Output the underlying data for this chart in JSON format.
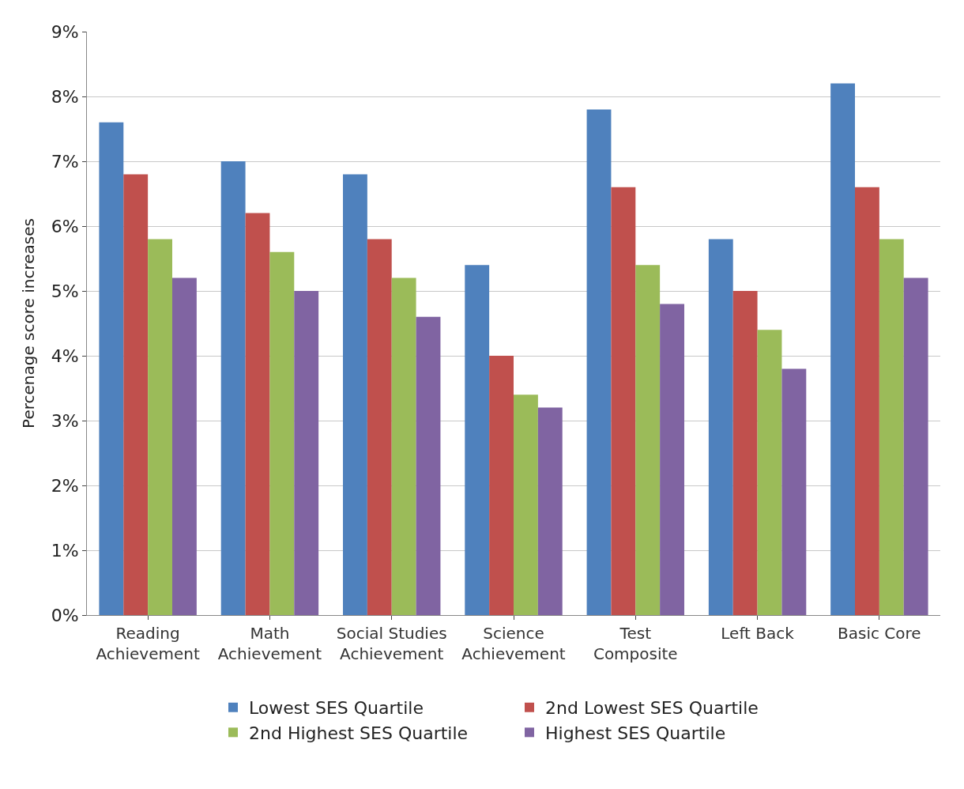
{
  "chart_data": {
    "type": "bar",
    "ylabel": "Percenage score increases",
    "categories": [
      "Reading\nAchievement",
      "Math\nAchievement",
      "Social Studies\nAchievement",
      "Science\nAchievement",
      "Test\nComposite",
      "Left Back",
      "Basic Core"
    ],
    "series": [
      {
        "name": "Lowest SES Quartile",
        "color": "#4f81bd",
        "values": [
          7.6,
          7.0,
          6.8,
          5.4,
          7.8,
          5.8,
          8.2
        ]
      },
      {
        "name": "2nd Lowest SES Quartile",
        "color": "#c0504d",
        "values": [
          6.8,
          6.2,
          5.8,
          4.0,
          6.6,
          5.0,
          6.6
        ]
      },
      {
        "name": "2nd Highest SES Quartile",
        "color": "#9bbb59",
        "values": [
          5.8,
          5.6,
          5.2,
          3.4,
          5.4,
          4.4,
          5.8
        ]
      },
      {
        "name": "Highest SES Quartile",
        "color": "#8064a2",
        "values": [
          5.2,
          5.0,
          4.6,
          3.2,
          4.8,
          3.8,
          5.2
        ]
      }
    ],
    "ylim": [
      0,
      9
    ],
    "yticks": [
      {
        "value": 0,
        "label": "0%"
      },
      {
        "value": 1,
        "label": "1%"
      },
      {
        "value": 2,
        "label": "2%"
      },
      {
        "value": 3,
        "label": "3%"
      },
      {
        "value": 4,
        "label": "4%"
      },
      {
        "value": 5,
        "label": "5%"
      },
      {
        "value": 6,
        "label": "6%"
      },
      {
        "value": 7,
        "label": "7%"
      },
      {
        "value": 8,
        "label": "8%"
      },
      {
        "value": 9,
        "label": "9%"
      }
    ],
    "grid": "y",
    "legend": "bottom"
  }
}
